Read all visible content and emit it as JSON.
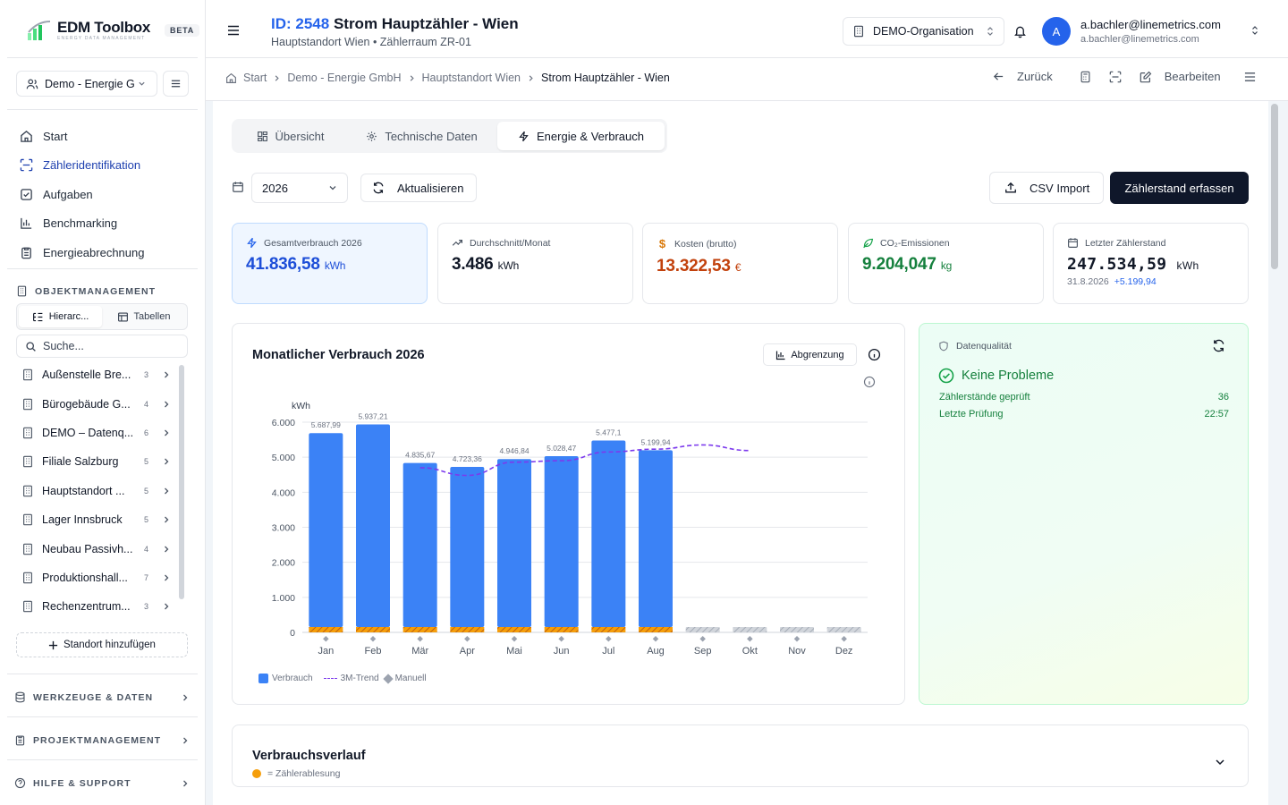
{
  "app": {
    "name": "EDM Toolbox",
    "sub": "ENERGY DATA MANAGEMENT",
    "badge": "BETA"
  },
  "sidebar": {
    "org": "Demo - Energie G",
    "nav": [
      {
        "label": "Start",
        "icon": "home-icon"
      },
      {
        "label": "Zähleridentifikation",
        "icon": "scan-icon"
      },
      {
        "label": "Aufgaben",
        "icon": "checkbox-icon"
      },
      {
        "label": "Benchmarking",
        "icon": "bar-chart-icon"
      },
      {
        "label": "Energieabrechnung",
        "icon": "clipboard-icon"
      }
    ],
    "objects_title": "OBJEKTMANAGEMENT",
    "view_hier": "Hierarc...",
    "view_table": "Tabellen",
    "search_placeholder": "Suche...",
    "tree": [
      {
        "label": "Außenstelle Bre...",
        "count": "3"
      },
      {
        "label": "Bürogebäude G...",
        "count": "4"
      },
      {
        "label": "DEMO – Datenq...",
        "count": "6"
      },
      {
        "label": "Filiale Salzburg",
        "count": "5"
      },
      {
        "label": "Hauptstandort ...",
        "count": "5"
      },
      {
        "label": "Lager Innsbruck",
        "count": "5"
      },
      {
        "label": "Neubau Passivh...",
        "count": "4"
      },
      {
        "label": "Produktionshall...",
        "count": "7"
      },
      {
        "label": "Rechenzentrum...",
        "count": "3"
      }
    ],
    "add_location": "Standort hinzufügen",
    "tools": "WERKZEUGE & DATEN",
    "projects": "PROJEKTMANAGEMENT",
    "help": "HILFE & SUPPORT"
  },
  "header": {
    "id": "ID: 2548",
    "name": "Strom Hauptzähler - Wien",
    "subtitle": "Hauptstandort Wien • Zählerraum ZR-01",
    "org": "DEMO-Organisation",
    "user_name": "a.bachler@linemetrics.com",
    "user_email": "a.bachler@linemetrics.com",
    "avatar": "A"
  },
  "breadcrumb": {
    "items": [
      "Start",
      "Demo - Energie GmbH",
      "Hauptstandort Wien"
    ],
    "current": "Strom Hauptzähler - Wien",
    "back": "Zurück",
    "edit": "Bearbeiten"
  },
  "tabs": [
    {
      "label": "Übersicht",
      "icon": "grid-icon"
    },
    {
      "label": "Technische Daten",
      "icon": "gear-icon"
    },
    {
      "label": "Energie & Verbrauch",
      "icon": "bolt-icon"
    }
  ],
  "toolbar": {
    "year": "2026",
    "refresh": "Aktualisieren",
    "csv": "CSV Import",
    "record": "Zählerstand erfassen"
  },
  "kpis": [
    {
      "label": "Gesamtverbrauch 2026",
      "value": "41.836,58",
      "unit": "kWh",
      "color": "#1d4ed8",
      "icon": "bolt-icon"
    },
    {
      "label": "Durchschnitt/Monat",
      "value": "3.486",
      "unit": "kWh",
      "color": "#111827",
      "icon": "trending-up-icon"
    },
    {
      "label": "Kosten (brutto)",
      "value": "13.322,53",
      "unit": "€",
      "color": "#c2410c",
      "icon": "dollar-icon"
    },
    {
      "label": "CO₂-Emissionen",
      "value": "9.204,047",
      "unit": "kg",
      "color": "#15803d",
      "icon": "leaf-icon"
    },
    {
      "label": "Letzter Zählerstand",
      "value": "247.534,59",
      "unit": "kWh",
      "color": "#111827",
      "icon": "calendar-icon",
      "date": "31.8.2026",
      "delta": "+5.199,94"
    }
  ],
  "chart_card": {
    "title": "Monatlicher Verbrauch 2026",
    "abgrenzung": "Abgrenzung"
  },
  "chart_data": {
    "type": "bar",
    "ylabel": "kWh",
    "ylim": [
      0,
      6000
    ],
    "yticks": [
      "0",
      "1.000",
      "2.000",
      "3.000",
      "4.000",
      "5.000",
      "6.000"
    ],
    "categories": [
      "Jan",
      "Feb",
      "Mär",
      "Apr",
      "Mai",
      "Jun",
      "Jul",
      "Aug",
      "Sep",
      "Okt",
      "Nov",
      "Dez"
    ],
    "series": [
      {
        "name": "Verbrauch",
        "values": [
          5687.99,
          5937.21,
          4835.67,
          4723.36,
          4946.84,
          5028.47,
          5477.1,
          5199.94,
          null,
          null,
          null,
          null
        ],
        "labels": [
          "5.687,99",
          "5.937,21",
          "4.835,67",
          "4.723,36",
          "4.946,84",
          "5.028,47",
          "5.477,1",
          "5.199,94",
          "",
          "",
          "",
          ""
        ]
      },
      {
        "name": "3M-Trend",
        "values": [
          null,
          null,
          4700,
          4480,
          4860,
          4900,
          5150,
          5230,
          5350,
          5190,
          null,
          null
        ]
      }
    ],
    "legend": [
      "Verbrauch",
      "3M-Trend",
      "Manuell"
    ],
    "colors": {
      "bar": "#3b82f6",
      "trend": "#7c3aed",
      "base": "#f59e0b"
    }
  },
  "quality": {
    "title": "Datenqualität",
    "status": "Keine Probleme",
    "rows": [
      {
        "label": "Zählerstände geprüft",
        "value": "36"
      },
      {
        "label": "Letzte Prüfung",
        "value": "22:57"
      }
    ]
  },
  "history": {
    "title": "Verbrauchsverlauf",
    "legend": "= Zählerablesung"
  }
}
